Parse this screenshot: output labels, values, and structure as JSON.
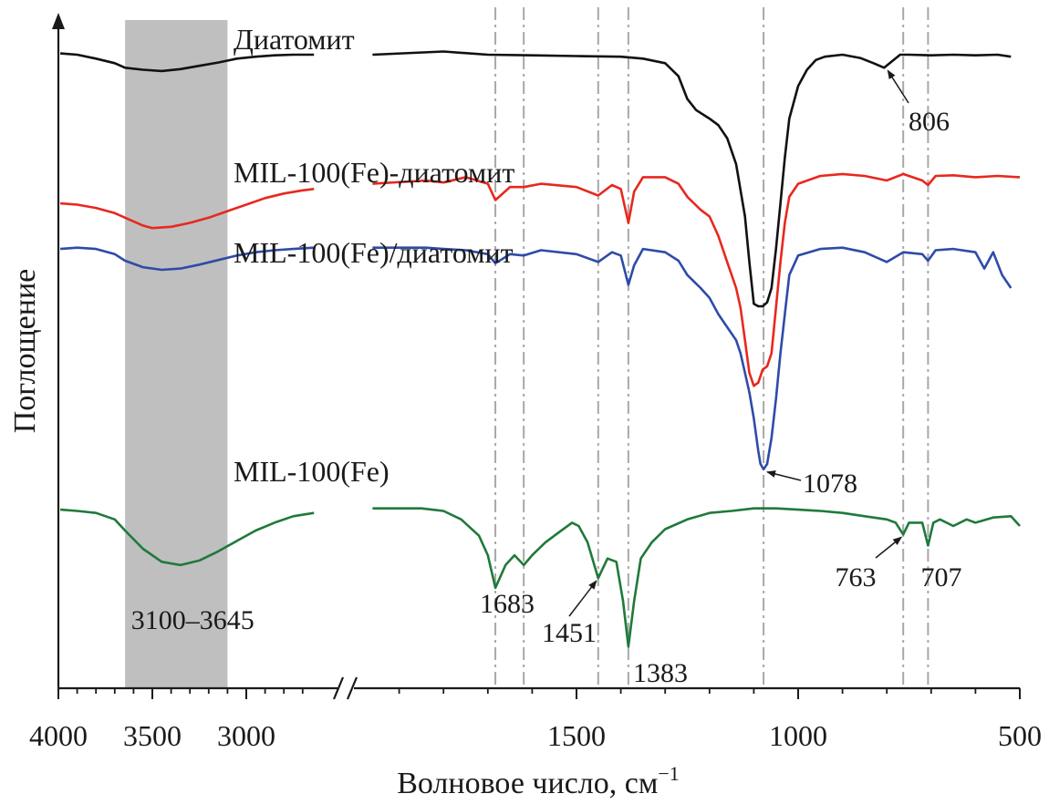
{
  "chart_data": {
    "type": "line",
    "x_axis": {
      "label": "Волновое число, см",
      "label_superscript": "−1",
      "reversed": true,
      "broken": true,
      "segments": [
        [
          3990,
          2640
        ],
        [
          1960,
          500
        ]
      ],
      "ticks": [
        4000,
        3500,
        3000,
        1500,
        1000,
        500
      ],
      "tick_labels": [
        "4000",
        "3500",
        "3000",
        "1500",
        "1000",
        "500"
      ]
    },
    "y_axis": {
      "label": "Поглощение",
      "ticks_shown": false
    },
    "shaded_region": {
      "from": 3100,
      "to": 3645,
      "label": "3100–3645",
      "color": "#bfbfbf"
    },
    "reference_lines": [
      1683,
      1619,
      1451,
      1383,
      1078,
      763,
      707
    ],
    "series": [
      {
        "name": "Диатомит",
        "color": "#111111",
        "points": [
          [
            3990,
            0.96
          ],
          [
            3900,
            0.958
          ],
          [
            3800,
            0.952
          ],
          [
            3700,
            0.945
          ],
          [
            3645,
            0.938
          ],
          [
            3550,
            0.935
          ],
          [
            3450,
            0.933
          ],
          [
            3350,
            0.936
          ],
          [
            3250,
            0.941
          ],
          [
            3150,
            0.946
          ],
          [
            3050,
            0.952
          ],
          [
            2950,
            0.955
          ],
          [
            2850,
            0.957
          ],
          [
            2750,
            0.958
          ],
          [
            2640,
            0.958
          ],
          [
            1960,
            0.958
          ],
          [
            1800,
            0.963
          ],
          [
            1700,
            0.958
          ],
          [
            1600,
            0.957
          ],
          [
            1500,
            0.956
          ],
          [
            1400,
            0.955
          ],
          [
            1350,
            0.952
          ],
          [
            1300,
            0.945
          ],
          [
            1270,
            0.925
          ],
          [
            1250,
            0.89
          ],
          [
            1230,
            0.873
          ],
          [
            1200,
            0.86
          ],
          [
            1180,
            0.85
          ],
          [
            1160,
            0.83
          ],
          [
            1140,
            0.79
          ],
          [
            1120,
            0.71
          ],
          [
            1110,
            0.64
          ],
          [
            1100,
            0.576
          ],
          [
            1090,
            0.572
          ],
          [
            1080,
            0.572
          ],
          [
            1070,
            0.578
          ],
          [
            1060,
            0.6
          ],
          [
            1050,
            0.66
          ],
          [
            1040,
            0.73
          ],
          [
            1030,
            0.8
          ],
          [
            1020,
            0.86
          ],
          [
            1000,
            0.91
          ],
          [
            980,
            0.935
          ],
          [
            960,
            0.95
          ],
          [
            940,
            0.955
          ],
          [
            900,
            0.958
          ],
          [
            860,
            0.953
          ],
          [
            830,
            0.945
          ],
          [
            806,
            0.938
          ],
          [
            790,
            0.947
          ],
          [
            770,
            0.958
          ],
          [
            750,
            0.958
          ],
          [
            700,
            0.957
          ],
          [
            650,
            0.958
          ],
          [
            600,
            0.957
          ],
          [
            550,
            0.958
          ],
          [
            520,
            0.955
          ]
        ]
      },
      {
        "name": "MIL-100(Fe)-диатомит",
        "color": "#e8281e",
        "points": [
          [
            3990,
            0.73
          ],
          [
            3900,
            0.728
          ],
          [
            3800,
            0.723
          ],
          [
            3700,
            0.715
          ],
          [
            3645,
            0.708
          ],
          [
            3550,
            0.696
          ],
          [
            3500,
            0.692
          ],
          [
            3400,
            0.694
          ],
          [
            3300,
            0.7
          ],
          [
            3200,
            0.708
          ],
          [
            3100,
            0.718
          ],
          [
            3000,
            0.728
          ],
          [
            2900,
            0.738
          ],
          [
            2800,
            0.745
          ],
          [
            2700,
            0.75
          ],
          [
            2640,
            0.752
          ],
          [
            1960,
            0.76
          ],
          [
            1840,
            0.765
          ],
          [
            1800,
            0.762
          ],
          [
            1750,
            0.77
          ],
          [
            1700,
            0.76
          ],
          [
            1683,
            0.735
          ],
          [
            1650,
            0.755
          ],
          [
            1619,
            0.755
          ],
          [
            1580,
            0.76
          ],
          [
            1500,
            0.755
          ],
          [
            1451,
            0.742
          ],
          [
            1420,
            0.758
          ],
          [
            1400,
            0.752
          ],
          [
            1383,
            0.7
          ],
          [
            1370,
            0.748
          ],
          [
            1350,
            0.77
          ],
          [
            1300,
            0.77
          ],
          [
            1270,
            0.76
          ],
          [
            1250,
            0.74
          ],
          [
            1220,
            0.72
          ],
          [
            1200,
            0.71
          ],
          [
            1180,
            0.68
          ],
          [
            1160,
            0.64
          ],
          [
            1140,
            0.6
          ],
          [
            1130,
            0.57
          ],
          [
            1120,
            0.52
          ],
          [
            1110,
            0.47
          ],
          [
            1100,
            0.45
          ],
          [
            1090,
            0.455
          ],
          [
            1080,
            0.475
          ],
          [
            1070,
            0.48
          ],
          [
            1060,
            0.5
          ],
          [
            1050,
            0.57
          ],
          [
            1040,
            0.64
          ],
          [
            1030,
            0.7
          ],
          [
            1020,
            0.74
          ],
          [
            1000,
            0.76
          ],
          [
            950,
            0.772
          ],
          [
            900,
            0.775
          ],
          [
            850,
            0.772
          ],
          [
            800,
            0.765
          ],
          [
            763,
            0.775
          ],
          [
            720,
            0.765
          ],
          [
            707,
            0.758
          ],
          [
            690,
            0.772
          ],
          [
            650,
            0.773
          ],
          [
            600,
            0.77
          ],
          [
            550,
            0.772
          ],
          [
            500,
            0.77
          ]
        ]
      },
      {
        "name": "MIL-100(Fe)/диатомит",
        "color": "#2e4ba8",
        "points": [
          [
            3990,
            0.66
          ],
          [
            3900,
            0.662
          ],
          [
            3800,
            0.66
          ],
          [
            3700,
            0.652
          ],
          [
            3645,
            0.642
          ],
          [
            3550,
            0.632
          ],
          [
            3450,
            0.628
          ],
          [
            3350,
            0.63
          ],
          [
            3250,
            0.636
          ],
          [
            3150,
            0.643
          ],
          [
            3050,
            0.65
          ],
          [
            2950,
            0.655
          ],
          [
            2850,
            0.658
          ],
          [
            2750,
            0.66
          ],
          [
            2640,
            0.662
          ],
          [
            1960,
            0.662
          ],
          [
            1840,
            0.662
          ],
          [
            1800,
            0.66
          ],
          [
            1750,
            0.658
          ],
          [
            1700,
            0.652
          ],
          [
            1683,
            0.638
          ],
          [
            1650,
            0.652
          ],
          [
            1619,
            0.65
          ],
          [
            1580,
            0.658
          ],
          [
            1500,
            0.652
          ],
          [
            1451,
            0.64
          ],
          [
            1420,
            0.655
          ],
          [
            1400,
            0.65
          ],
          [
            1383,
            0.605
          ],
          [
            1370,
            0.635
          ],
          [
            1350,
            0.66
          ],
          [
            1300,
            0.655
          ],
          [
            1270,
            0.642
          ],
          [
            1250,
            0.62
          ],
          [
            1220,
            0.6
          ],
          [
            1200,
            0.585
          ],
          [
            1180,
            0.56
          ],
          [
            1160,
            0.54
          ],
          [
            1140,
            0.52
          ],
          [
            1130,
            0.5
          ],
          [
            1120,
            0.47
          ],
          [
            1110,
            0.44
          ],
          [
            1100,
            0.4
          ],
          [
            1090,
            0.35
          ],
          [
            1085,
            0.33
          ],
          [
            1078,
            0.322
          ],
          [
            1070,
            0.33
          ],
          [
            1060,
            0.37
          ],
          [
            1050,
            0.43
          ],
          [
            1040,
            0.5
          ],
          [
            1030,
            0.56
          ],
          [
            1020,
            0.62
          ],
          [
            1000,
            0.65
          ],
          [
            950,
            0.66
          ],
          [
            900,
            0.662
          ],
          [
            850,
            0.655
          ],
          [
            800,
            0.64
          ],
          [
            763,
            0.655
          ],
          [
            720,
            0.652
          ],
          [
            707,
            0.642
          ],
          [
            690,
            0.658
          ],
          [
            650,
            0.66
          ],
          [
            600,
            0.655
          ],
          [
            580,
            0.63
          ],
          [
            560,
            0.655
          ],
          [
            540,
            0.62
          ],
          [
            520,
            0.6
          ]
        ]
      },
      {
        "name": "MIL-100(Fe)",
        "color": "#1f7a3a",
        "points": [
          [
            3990,
            0.26
          ],
          [
            3900,
            0.258
          ],
          [
            3800,
            0.255
          ],
          [
            3700,
            0.245
          ],
          [
            3645,
            0.228
          ],
          [
            3550,
            0.2
          ],
          [
            3450,
            0.18
          ],
          [
            3350,
            0.175
          ],
          [
            3250,
            0.182
          ],
          [
            3150,
            0.196
          ],
          [
            3050,
            0.212
          ],
          [
            2950,
            0.228
          ],
          [
            2850,
            0.24
          ],
          [
            2750,
            0.25
          ],
          [
            2640,
            0.255
          ],
          [
            1960,
            0.262
          ],
          [
            1850,
            0.262
          ],
          [
            1800,
            0.258
          ],
          [
            1760,
            0.245
          ],
          [
            1720,
            0.22
          ],
          [
            1700,
            0.19
          ],
          [
            1683,
            0.14
          ],
          [
            1660,
            0.175
          ],
          [
            1640,
            0.19
          ],
          [
            1619,
            0.175
          ],
          [
            1600,
            0.19
          ],
          [
            1570,
            0.21
          ],
          [
            1540,
            0.225
          ],
          [
            1510,
            0.24
          ],
          [
            1495,
            0.235
          ],
          [
            1475,
            0.21
          ],
          [
            1451,
            0.155
          ],
          [
            1430,
            0.185
          ],
          [
            1410,
            0.18
          ],
          [
            1395,
            0.12
          ],
          [
            1383,
            0.05
          ],
          [
            1370,
            0.12
          ],
          [
            1355,
            0.185
          ],
          [
            1330,
            0.21
          ],
          [
            1300,
            0.23
          ],
          [
            1250,
            0.245
          ],
          [
            1200,
            0.255
          ],
          [
            1150,
            0.258
          ],
          [
            1100,
            0.262
          ],
          [
            1050,
            0.262
          ],
          [
            1000,
            0.26
          ],
          [
            950,
            0.258
          ],
          [
            900,
            0.255
          ],
          [
            850,
            0.25
          ],
          [
            800,
            0.245
          ],
          [
            780,
            0.24
          ],
          [
            763,
            0.222
          ],
          [
            750,
            0.24
          ],
          [
            720,
            0.24
          ],
          [
            707,
            0.205
          ],
          [
            695,
            0.24
          ],
          [
            680,
            0.245
          ],
          [
            650,
            0.235
          ],
          [
            620,
            0.245
          ],
          [
            600,
            0.24
          ],
          [
            560,
            0.248
          ],
          [
            520,
            0.25
          ],
          [
            500,
            0.235
          ]
        ]
      }
    ],
    "annotations": [
      {
        "text": "806",
        "x": 806,
        "series": 0
      },
      {
        "text": "1078",
        "x": 1078,
        "series": 2
      },
      {
        "text": "1683",
        "x": 1683,
        "series": 3
      },
      {
        "text": "1451",
        "x": 1451,
        "series": 3
      },
      {
        "text": "1383",
        "x": 1383,
        "series": 3
      },
      {
        "text": "763",
        "x": 763,
        "series": 3
      },
      {
        "text": "707",
        "x": 707,
        "series": 3
      }
    ]
  }
}
